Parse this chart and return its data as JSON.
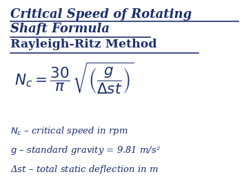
{
  "title_line1": "Critical Speed of Rotating",
  "title_line2": "Shaft Formula",
  "subtitle": "Rayleigh-Ritz Method",
  "text_color": "#1a2e6e",
  "background_color": "#ffffff",
  "desc1": "$N_c$ – critical speed in rpm",
  "desc2": "$g$ – standard gravity = 9.81 m/s²",
  "desc3": "Δ$st$ – total static deflection in m",
  "figsize": [
    3.54,
    2.63
  ],
  "dpi": 100
}
